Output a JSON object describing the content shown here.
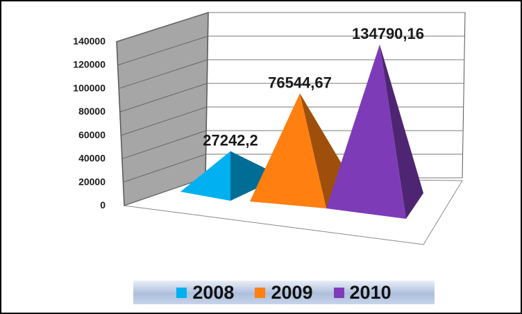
{
  "chart_data": {
    "type": "bar",
    "categories": [
      "2008",
      "2009",
      "2010"
    ],
    "values": [
      27242.2,
      76544.67,
      134790.16
    ],
    "data_labels": [
      "27242,2",
      "76544,67",
      "134790,16"
    ],
    "colors": [
      "#00b0f0",
      "#ff7f11",
      "#7e3bb8"
    ],
    "ylim": [
      0,
      140000
    ],
    "yticks": [
      0,
      20000,
      40000,
      60000,
      80000,
      100000,
      120000,
      140000
    ],
    "legend": {
      "placement": "bottom",
      "entries": [
        "2008",
        "2009",
        "2010"
      ]
    },
    "grid": true,
    "shape": "pyramid-3d"
  }
}
